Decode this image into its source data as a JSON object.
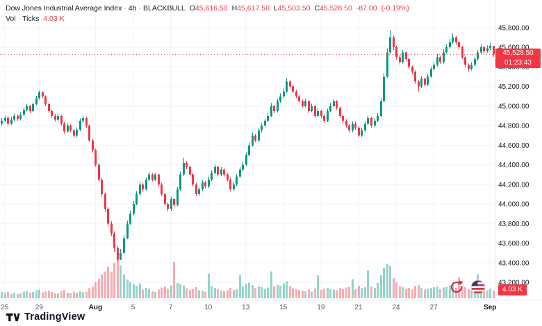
{
  "colors": {
    "up": "#089981",
    "down": "#f23645",
    "vol_up": "rgba(8,153,129,0.42)",
    "vol_down": "rgba(242,54,69,0.42)",
    "grid": "#f0f3fa",
    "border": "#e0e3eb",
    "axis_text": "#131722",
    "axis_text_soft": "#50535e"
  },
  "legend": {
    "symbol": "Dow Jones Industrial Average Index",
    "separator": "·",
    "interval": "4h",
    "exchange": "BLACKBULL",
    "o_label": "O",
    "o": "45,616.50",
    "h_label": "H",
    "h": "45,617.50",
    "l_label": "L",
    "l": "45,503.50",
    "c_label": "C",
    "c": "45,528.50",
    "change": "-87.00",
    "change_pct": "(-0.19%)",
    "vol_label": "Vol",
    "vol_type": "Ticks",
    "vol_value": "4.03 K"
  },
  "axis": {
    "last_price": "45,528.50",
    "countdown": "01:23:43",
    "volume_badge": "4.03 K"
  },
  "footer": {
    "brand": "TradingView"
  },
  "chart_data": {
    "type": "candlestick",
    "title": "Dow Jones Industrial Average Index",
    "interval": "4h",
    "exchange": "BLACKBULL",
    "legend_position": "top-left",
    "grid": true,
    "volume_units": "K",
    "last": {
      "price": 45528.5,
      "change": -87.0,
      "change_pct": -0.19,
      "countdown": "01:23:43",
      "volume_display": "4.03 K"
    },
    "y_axis": {
      "side": "right",
      "min": 43200,
      "max": 45800,
      "step": 200,
      "ticks": [
        {
          "v": 45800,
          "t": "45,800.00"
        },
        {
          "v": 45600,
          "t": "45,600.00"
        },
        {
          "v": 45400,
          "t": "45,400.00"
        },
        {
          "v": 45200,
          "t": "45,200.00"
        },
        {
          "v": 45000,
          "t": "45,000.00"
        },
        {
          "v": 44800,
          "t": "44,800.00"
        },
        {
          "v": 44600,
          "t": "44,600.00"
        },
        {
          "v": 44400,
          "t": "44,400.00"
        },
        {
          "v": 44200,
          "t": "44,200.00"
        },
        {
          "v": 44000,
          "t": "44,000.00"
        },
        {
          "v": 43800,
          "t": "43,800.00"
        },
        {
          "v": 43600,
          "t": "43,600.00"
        },
        {
          "v": 43400,
          "t": "43,400.00"
        },
        {
          "v": 43200,
          "t": "43,200.00"
        }
      ]
    },
    "x_axis": {
      "labels": [
        {
          "t": "25",
          "i": 1,
          "b": false
        },
        {
          "t": "29",
          "i": 12,
          "b": false
        },
        {
          "t": "Aug",
          "i": 30,
          "b": true
        },
        {
          "t": "5",
          "i": 42,
          "b": false
        },
        {
          "t": "7",
          "i": 54,
          "b": false
        },
        {
          "t": "10",
          "i": 66,
          "b": false
        },
        {
          "t": "13",
          "i": 78,
          "b": false
        },
        {
          "t": "15",
          "i": 90,
          "b": false
        },
        {
          "t": "19",
          "i": 102,
          "b": false
        },
        {
          "t": "21",
          "i": 114,
          "b": false
        },
        {
          "t": "24",
          "i": 126,
          "b": false
        },
        {
          "t": "27",
          "i": 138,
          "b": false
        },
        {
          "t": "Sep",
          "i": 156,
          "b": true
        }
      ]
    },
    "candles_format": [
      "open",
      "high",
      "low",
      "close",
      "volume_K"
    ],
    "candles": [
      [
        44820,
        44880,
        44800,
        44850,
        3.2
      ],
      [
        44850,
        44905,
        44835,
        44880,
        2.8
      ],
      [
        44880,
        44895,
        44795,
        44820,
        3.5
      ],
      [
        44820,
        44885,
        44805,
        44860,
        2.4
      ],
      [
        44860,
        44925,
        44845,
        44900,
        3.0
      ],
      [
        44900,
        44915,
        44850,
        44870,
        2.2
      ],
      [
        44870,
        44935,
        44855,
        44910,
        2.6
      ],
      [
        44910,
        44985,
        44895,
        44960,
        3.4
      ],
      [
        44960,
        45025,
        44945,
        45000,
        3.8
      ],
      [
        45000,
        45015,
        44930,
        44950,
        2.9
      ],
      [
        44950,
        45040,
        44935,
        45020,
        3.3
      ],
      [
        45020,
        45105,
        45005,
        45080,
        4.1
      ],
      [
        45080,
        45160,
        45065,
        45140,
        4.6
      ],
      [
        45140,
        45150,
        45080,
        45100,
        3.1
      ],
      [
        45100,
        45110,
        45000,
        45020,
        3.6
      ],
      [
        45020,
        45035,
        44930,
        44950,
        4.0
      ],
      [
        44950,
        44965,
        44880,
        44900,
        3.2
      ],
      [
        44900,
        44920,
        44840,
        44860,
        2.7
      ],
      [
        44860,
        44925,
        44845,
        44900,
        2.5
      ],
      [
        44900,
        44910,
        44800,
        44820,
        3.9
      ],
      [
        44820,
        44835,
        44720,
        44740,
        4.4
      ],
      [
        44740,
        44825,
        44725,
        44800,
        3.0
      ],
      [
        44800,
        44815,
        44730,
        44750,
        2.8
      ],
      [
        44750,
        44765,
        44675,
        44700,
        3.5
      ],
      [
        44700,
        44785,
        44685,
        44760,
        2.9
      ],
      [
        44760,
        44875,
        44745,
        44850,
        3.7
      ],
      [
        44850,
        44905,
        44830,
        44880,
        3.1
      ],
      [
        44880,
        44890,
        44780,
        44800,
        3.4
      ],
      [
        44800,
        44810,
        44630,
        44650,
        5.2
      ],
      [
        44650,
        44665,
        44525,
        44550,
        6.0
      ],
      [
        44550,
        44565,
        44380,
        44400,
        8.5
      ],
      [
        44400,
        44415,
        44225,
        44250,
        10.2
      ],
      [
        44250,
        44265,
        44075,
        44100,
        12.5
      ],
      [
        44100,
        44115,
        43920,
        43950,
        14.0
      ],
      [
        43950,
        43970,
        43770,
        43800,
        16.5
      ],
      [
        43800,
        43825,
        43670,
        43700,
        13.8
      ],
      [
        43700,
        43720,
        43510,
        43550,
        18.5
      ],
      [
        43550,
        43570,
        43420,
        43430,
        20.0
      ],
      [
        43430,
        43540,
        43425,
        43500,
        17.2
      ],
      [
        43500,
        43680,
        43490,
        43650,
        12.6
      ],
      [
        43650,
        43830,
        43640,
        43800,
        9.8
      ],
      [
        43800,
        43930,
        43785,
        43900,
        8.4
      ],
      [
        43900,
        44030,
        43885,
        44000,
        7.2
      ],
      [
        44000,
        44130,
        43985,
        44100,
        6.5
      ],
      [
        44100,
        44230,
        44085,
        44200,
        7.8
      ],
      [
        44200,
        44215,
        44125,
        44150,
        4.6
      ],
      [
        44150,
        44275,
        44135,
        44250,
        5.4
      ],
      [
        44250,
        44325,
        44230,
        44300,
        4.9
      ],
      [
        44300,
        44315,
        44230,
        44250,
        3.8
      ],
      [
        44250,
        44320,
        44235,
        44300,
        3.2
      ],
      [
        44300,
        44310,
        44180,
        44200,
        4.5
      ],
      [
        44200,
        44215,
        44080,
        44100,
        5.6
      ],
      [
        44100,
        44115,
        43980,
        44000,
        6.2
      ],
      [
        44000,
        44015,
        43925,
        43950,
        5.0
      ],
      [
        43950,
        44075,
        43930,
        44050,
        6.8
      ],
      [
        44050,
        44060,
        43965,
        43990,
        19.0
      ],
      [
        43990,
        44175,
        43975,
        44150,
        8.0
      ],
      [
        44150,
        44330,
        44135,
        44300,
        7.5
      ],
      [
        44300,
        44470,
        44285,
        44420,
        6.8
      ],
      [
        44420,
        44440,
        44355,
        44380,
        5.2
      ],
      [
        44380,
        44395,
        44280,
        44300,
        4.4
      ],
      [
        44300,
        44315,
        44180,
        44200,
        5.0
      ],
      [
        44200,
        44215,
        44080,
        44100,
        5.8
      ],
      [
        44100,
        44175,
        44085,
        44150,
        4.2
      ],
      [
        44150,
        44245,
        44135,
        44220,
        3.9
      ],
      [
        44220,
        44235,
        44160,
        44180,
        3.3
      ],
      [
        44180,
        44280,
        44165,
        44250,
        13.0
      ],
      [
        44250,
        44345,
        44235,
        44320,
        6.4
      ],
      [
        44320,
        44405,
        44305,
        44380,
        5.5
      ],
      [
        44380,
        44390,
        44280,
        44300,
        4.7
      ],
      [
        44300,
        44375,
        44285,
        44350,
        4.0
      ],
      [
        44350,
        44365,
        44280,
        44300,
        3.6
      ],
      [
        44300,
        44315,
        44230,
        44250,
        4.2
      ],
      [
        44250,
        44265,
        44130,
        44150,
        5.4
      ],
      [
        44150,
        44225,
        44135,
        44200,
        4.1
      ],
      [
        44200,
        44305,
        44185,
        44280,
        4.8
      ],
      [
        44280,
        44375,
        44265,
        44350,
        12.0
      ],
      [
        44350,
        44425,
        44335,
        44400,
        6.2
      ],
      [
        44400,
        44530,
        44385,
        44500,
        7.4
      ],
      [
        44500,
        44630,
        44485,
        44600,
        8.2
      ],
      [
        44600,
        44730,
        44585,
        44700,
        7.0
      ],
      [
        44700,
        44715,
        44630,
        44650,
        5.3
      ],
      [
        44650,
        44775,
        44635,
        44750,
        6.1
      ],
      [
        44750,
        44825,
        44730,
        44800,
        5.8
      ],
      [
        44800,
        44875,
        44785,
        44850,
        5.0
      ],
      [
        44850,
        44930,
        44835,
        44900,
        5.6
      ],
      [
        44900,
        45030,
        44885,
        45000,
        14.0
      ],
      [
        45000,
        45015,
        44930,
        44950,
        6.3
      ],
      [
        44950,
        45075,
        44935,
        45050,
        7.1
      ],
      [
        45050,
        45130,
        45035,
        45100,
        6.6
      ],
      [
        45100,
        45180,
        45085,
        45150,
        7.8
      ],
      [
        45150,
        45285,
        45135,
        45250,
        9.0
      ],
      [
        45250,
        45265,
        45180,
        45200,
        6.4
      ],
      [
        45200,
        45215,
        45130,
        45150,
        5.2
      ],
      [
        45150,
        45165,
        45080,
        45100,
        4.8
      ],
      [
        45100,
        45115,
        45030,
        45050,
        4.3
      ],
      [
        45050,
        45065,
        44980,
        45000,
        4.0
      ],
      [
        45000,
        45075,
        44985,
        45050,
        3.7
      ],
      [
        45050,
        45060,
        44930,
        44950,
        4.6
      ],
      [
        44950,
        45025,
        44935,
        45000,
        3.4
      ],
      [
        45000,
        45010,
        44880,
        44900,
        5.1
      ],
      [
        44900,
        44975,
        44885,
        44950,
        12.0
      ],
      [
        44950,
        44965,
        44880,
        44900,
        4.4
      ],
      [
        44900,
        44915,
        44830,
        44850,
        4.9
      ],
      [
        44850,
        44975,
        44835,
        44950,
        5.5
      ],
      [
        44950,
        45030,
        44935,
        45000,
        5.0
      ],
      [
        45000,
        45075,
        44985,
        45050,
        4.6
      ],
      [
        45050,
        45060,
        44960,
        44980,
        4.2
      ],
      [
        44980,
        44995,
        44880,
        44900,
        5.3
      ],
      [
        44900,
        44915,
        44830,
        44850,
        4.7
      ],
      [
        44850,
        44865,
        44780,
        44800,
        5.6
      ],
      [
        44800,
        44815,
        44730,
        44750,
        6.0
      ],
      [
        44750,
        44845,
        44735,
        44820,
        10.0
      ],
      [
        44820,
        44835,
        44760,
        44780,
        4.8
      ],
      [
        44780,
        44795,
        44680,
        44700,
        6.5
      ],
      [
        44700,
        44775,
        44685,
        44750,
        5.2
      ],
      [
        44750,
        44845,
        44735,
        44820,
        5.8
      ],
      [
        44820,
        44905,
        44805,
        44880,
        14.5
      ],
      [
        44880,
        44890,
        44780,
        44800,
        6.2
      ],
      [
        44800,
        44875,
        44785,
        44850,
        5.4
      ],
      [
        44850,
        44930,
        44835,
        44900,
        8.0
      ],
      [
        44900,
        45085,
        44885,
        45050,
        12.0
      ],
      [
        45050,
        45340,
        45035,
        45300,
        16.0
      ],
      [
        45300,
        45590,
        45285,
        45550,
        18.0
      ],
      [
        45550,
        45780,
        45535,
        45700,
        17.0
      ],
      [
        45700,
        45720,
        45575,
        45600,
        10.5
      ],
      [
        45600,
        45615,
        45475,
        45500,
        8.2
      ],
      [
        45500,
        45515,
        45425,
        45450,
        6.4
      ],
      [
        45450,
        45575,
        45435,
        45550,
        5.8
      ],
      [
        45550,
        45560,
        45455,
        45480,
        5.0
      ],
      [
        45480,
        45495,
        45380,
        45400,
        5.5
      ],
      [
        45400,
        45415,
        45330,
        45350,
        4.8
      ],
      [
        45350,
        45365,
        45225,
        45250,
        6.6
      ],
      [
        45250,
        45265,
        45150,
        45200,
        7.0
      ],
      [
        45200,
        45305,
        45185,
        45280,
        5.2
      ],
      [
        45280,
        45295,
        45200,
        45220,
        4.6
      ],
      [
        45220,
        45325,
        45205,
        45300,
        4.9
      ],
      [
        45300,
        45405,
        45285,
        45380,
        5.3
      ],
      [
        45380,
        45450,
        45365,
        45420,
        5.8
      ],
      [
        45420,
        45530,
        45405,
        45500,
        6.2
      ],
      [
        45500,
        45515,
        45430,
        45450,
        4.7
      ],
      [
        45450,
        45580,
        45435,
        45550,
        5.6
      ],
      [
        45550,
        45630,
        45535,
        45600,
        6.0
      ],
      [
        45600,
        45685,
        45585,
        45650,
        6.8
      ],
      [
        45650,
        45745,
        45635,
        45700,
        7.5
      ],
      [
        45700,
        45715,
        45625,
        45650,
        5.4
      ],
      [
        45650,
        45665,
        45575,
        45600,
        11.0
      ],
      [
        45600,
        45615,
        45480,
        45500,
        6.6
      ],
      [
        45500,
        45515,
        45400,
        45420,
        5.8
      ],
      [
        45420,
        45435,
        45355,
        45380,
        5.0
      ],
      [
        45380,
        45445,
        45365,
        45420,
        4.4
      ],
      [
        45420,
        45505,
        45405,
        45480,
        4.9
      ],
      [
        45480,
        45575,
        45465,
        45550,
        12.5
      ],
      [
        45550,
        45635,
        45535,
        45600,
        5.6
      ],
      [
        45600,
        45615,
        45540,
        45560,
        4.8
      ],
      [
        45560,
        45620,
        45545,
        45590,
        4.2
      ],
      [
        45590,
        45640,
        45575,
        45615.5,
        5.0
      ],
      [
        45616.5,
        45617.5,
        45503.5,
        45528.5,
        4.03
      ]
    ]
  }
}
